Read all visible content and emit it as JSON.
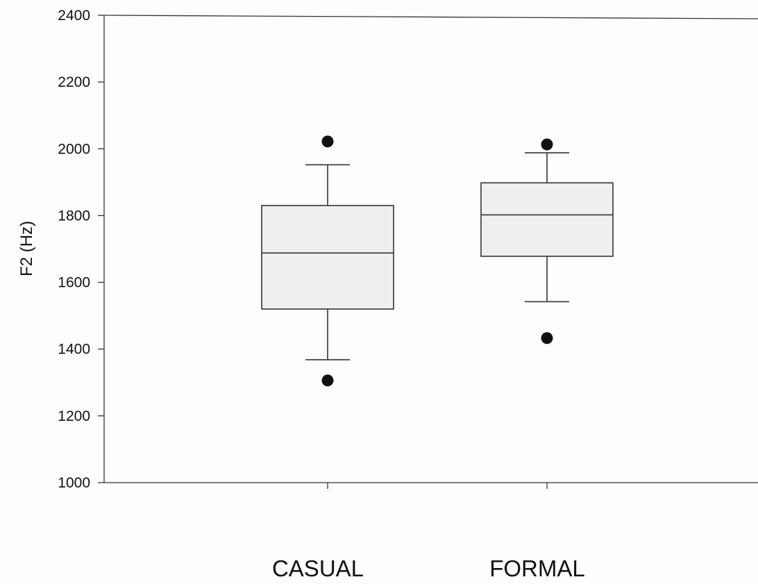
{
  "chart_data": {
    "type": "box",
    "title": "",
    "xlabel": "",
    "ylabel": "F2 (Hz)",
    "ylim": [
      1000,
      2400
    ],
    "yticks": [
      1000,
      1200,
      1400,
      1600,
      1800,
      2000,
      2200,
      2400
    ],
    "ytick_labels": [
      "1000",
      "1200",
      "1400",
      "1600",
      "1800",
      "2000",
      "2200",
      "2400"
    ],
    "grid": false,
    "legend": "none",
    "categories": [
      "CASUAL",
      "FORMAL"
    ],
    "boxes": [
      {
        "category": "CASUAL",
        "whisker_low": 1368,
        "q1": 1520,
        "median": 1688,
        "q3": 1830,
        "whisker_high": 1952,
        "outliers": [
          2022,
          1306
        ]
      },
      {
        "category": "FORMAL",
        "whisker_low": 1542,
        "q1": 1678,
        "median": 1802,
        "q3": 1898,
        "whisker_high": 1988,
        "outliers": [
          2013,
          1433
        ]
      }
    ],
    "colors": {
      "box_fill": "#efefef",
      "lines": "#333333",
      "outliers": "#111111"
    }
  }
}
